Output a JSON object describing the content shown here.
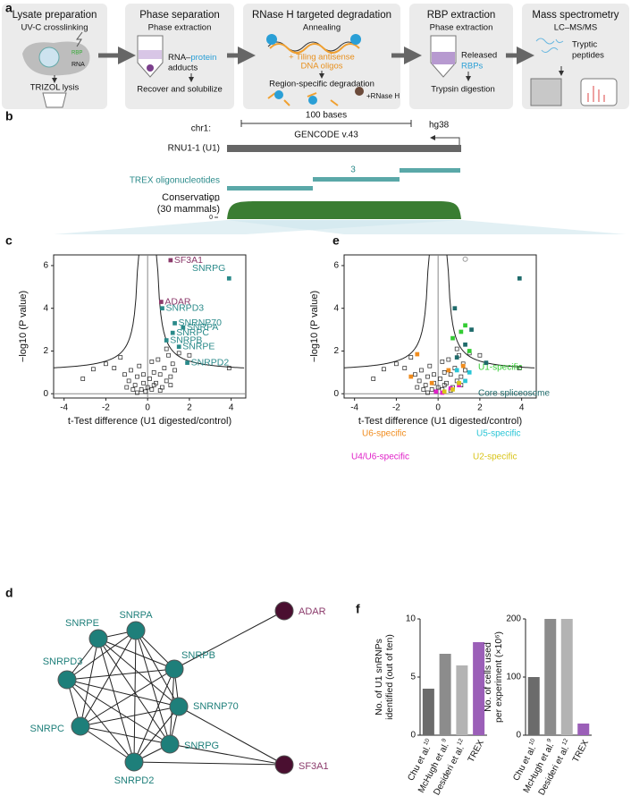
{
  "panel_labels": [
    "a",
    "b",
    "c",
    "d",
    "e",
    "f"
  ],
  "workflow": {
    "steps": [
      {
        "title": "Lysate preparation",
        "subtitle": "UV-C crosslinking",
        "notes": [
          "RBP",
          "RNA",
          "TRIZOL lysis"
        ]
      },
      {
        "title": "Phase separation",
        "subtitle": "Phase extraction",
        "notes": [
          "RNA–",
          "protein",
          "adducts",
          "Recover and solubilize"
        ]
      },
      {
        "title": "RNase H targeted degradation",
        "subtitle": "Annealing",
        "notes": [
          "+ Tiling antisense",
          "DNA oligos",
          "Region-specific degradation",
          "+RNase H"
        ]
      },
      {
        "title": "RBP extraction",
        "subtitle": "Phase extraction",
        "notes": [
          "Released",
          "RBPs",
          "Trypsin digestion"
        ]
      },
      {
        "title": "Mass spectrometry",
        "subtitle": "LC–MS/MS",
        "notes": [
          "Tryptic",
          "peptides"
        ]
      }
    ]
  },
  "track": {
    "chrom": "chr1:",
    "scale": "100 bases",
    "assembly": "hg38",
    "gencode": "GENCODE v.43",
    "gene": "RNU1-1 (U1)",
    "oligo_track": "TREX oligonucleotides",
    "oligo_count": 3,
    "conservation": [
      "Conservation",
      "(30 mammals)"
    ],
    "conservation_ticks": [
      1,
      0
    ]
  },
  "chart_data": [
    {
      "type": "scatter",
      "xlabel": "t-Test difference (U1 digested/control)",
      "ylabel": "−log10 (P value)",
      "xlim": [
        -4.5,
        4.7
      ],
      "ylim": [
        -0.2,
        6.5
      ],
      "xticks": [
        -4,
        -2,
        0,
        2,
        4
      ],
      "yticks": [
        0,
        2,
        4,
        6
      ],
      "series": [
        {
          "color": "#222222",
          "marker": "open-square",
          "x": [
            -3.1,
            -2.6,
            -2.0,
            -1.6,
            -1.3,
            -1.1,
            -0.9,
            -0.8,
            -0.6,
            -0.5,
            -0.4,
            -0.3,
            -0.2,
            -0.1,
            0.0,
            0.1,
            0.2,
            0.3,
            0.4,
            0.5,
            0.6,
            0.7,
            0.8,
            0.9,
            1.0,
            1.1,
            1.2,
            1.3,
            1.5,
            2.0,
            3.9,
            -0.7,
            -0.2,
            0.3,
            0.6,
            0.9,
            -0.5,
            0.2,
            1.1,
            -1.0
          ],
          "y": [
            0.7,
            1.15,
            1.4,
            1.2,
            1.7,
            0.9,
            0.6,
            1.1,
            0.4,
            0.8,
            1.3,
            0.2,
            0.5,
            0.1,
            0.3,
            0.7,
            0.2,
            1.0,
            0.5,
            1.6,
            0.9,
            0.3,
            1.2,
            0.6,
            1.8,
            0.4,
            1.4,
            1.1,
            1.9,
            1.8,
            1.2,
            0.2,
            0.9,
            0.4,
            0.15,
            2.1,
            0.05,
            1.5,
            0.8,
            0.3
          ]
        },
        {
          "color": "#2a8a8a",
          "marker": "square",
          "x": [
            3.9,
            0.7,
            1.3,
            1.7,
            1.2,
            0.9,
            1.5,
            1.9
          ],
          "y": [
            5.4,
            4.0,
            3.3,
            3.1,
            2.85,
            2.5,
            2.2,
            1.45
          ],
          "labels": [
            "SNRPG",
            "SNRPD3",
            "SNRNP70",
            "SNRPA",
            "SNRPC",
            "SNRPB",
            "SNRPE",
            "SNRPD2"
          ]
        },
        {
          "color": "#8b3a6b",
          "marker": "square",
          "x": [
            1.1,
            0.65
          ],
          "y": [
            6.25,
            4.3
          ],
          "labels": [
            "SF3A1",
            "ADAR"
          ]
        }
      ]
    },
    {
      "type": "scatter",
      "xlabel": "t-Test difference (U1 digested/control)",
      "ylabel": "−log10 (P value)",
      "xlim": [
        -4.5,
        4.7
      ],
      "ylim": [
        -0.2,
        6.5
      ],
      "xticks": [
        -4,
        -2,
        0,
        2,
        4
      ],
      "yticks": [
        0,
        2,
        4,
        6
      ],
      "series": [
        {
          "color": "#222222",
          "marker": "open-square",
          "x": [
            -3.1,
            -2.6,
            -2.0,
            -1.6,
            -1.3,
            -1.1,
            -0.9,
            -0.8,
            -0.6,
            -0.5,
            -0.4,
            -0.3,
            -0.2,
            -0.1,
            0.0,
            0.1,
            0.2,
            0.3,
            0.4,
            0.5,
            0.6,
            0.7,
            0.8,
            0.9,
            1.0,
            1.1,
            1.2,
            1.3,
            1.5,
            2.0,
            3.9,
            -0.7,
            -0.2,
            0.3,
            0.6,
            0.9,
            -0.5,
            0.2,
            1.1,
            -1.0
          ],
          "y": [
            0.7,
            1.15,
            1.4,
            1.2,
            1.7,
            0.9,
            0.6,
            1.1,
            0.4,
            0.8,
            1.3,
            0.2,
            0.5,
            0.1,
            0.3,
            0.7,
            0.2,
            1.0,
            0.5,
            1.6,
            0.9,
            0.3,
            1.2,
            0.6,
            1.8,
            0.4,
            1.4,
            1.1,
            1.9,
            1.8,
            1.2,
            0.2,
            0.9,
            0.4,
            0.15,
            2.1,
            0.05,
            1.5,
            0.8,
            0.3
          ]
        },
        {
          "name": "U1-specific",
          "color": "#33cc33",
          "marker": "square",
          "x": [
            1.3,
            1.1,
            0.7,
            1.5
          ],
          "y": [
            3.2,
            2.9,
            2.6,
            2.0
          ]
        },
        {
          "name": "Core spliceosome",
          "color": "#1f6b6b",
          "marker": "square",
          "x": [
            0.8,
            1.6,
            2.3,
            3.9,
            1.3,
            0.9
          ],
          "y": [
            4.0,
            3.0,
            1.45,
            5.4,
            2.3,
            1.7
          ]
        },
        {
          "name": "U5-specific",
          "color": "#29c5d6",
          "marker": "square",
          "x": [
            0.9,
            1.5,
            1.3
          ],
          "y": [
            1.1,
            1.0,
            0.6
          ]
        },
        {
          "name": "U6-specific",
          "color": "#f08c1e",
          "marker": "square",
          "x": [
            -1.0,
            -1.3,
            -0.3,
            0.5,
            1.2
          ],
          "y": [
            1.85,
            0.8,
            0.5,
            1.1,
            1.3
          ]
        },
        {
          "name": "U4/U6-specific",
          "color": "#e020c8",
          "marker": "square",
          "x": [
            0.2,
            1.0,
            0.6,
            -0.1
          ],
          "y": [
            0.05,
            0.4,
            0.25,
            0.1
          ]
        },
        {
          "name": "U2-specific",
          "color": "#d9c41a",
          "marker": "square",
          "x": [
            0.3,
            0.7,
            1.0
          ],
          "y": [
            0.1,
            0.2,
            0.5
          ]
        },
        {
          "color": "#999999",
          "marker": "open-circle",
          "x": [
            1.3
          ],
          "y": [
            6.3
          ]
        }
      ]
    },
    {
      "type": "bar",
      "ylabel": [
        "No. of U1 snRNPs",
        "identified (out of ten)"
      ],
      "categories": [
        {
          "label": "Chu et al.",
          "ref": "10"
        },
        {
          "label": "McHugh et al.",
          "ref": "9"
        },
        {
          "label": "Desideri et al.",
          "ref": "12"
        },
        {
          "label": "TREX"
        }
      ],
      "values": [
        4,
        7,
        6,
        8
      ],
      "colors": [
        "#6b6b6b",
        "#8c8c8c",
        "#b3b3b3",
        "#9b5fb8"
      ],
      "ylim": [
        0,
        10
      ],
      "yticks": [
        0,
        5,
        10
      ]
    },
    {
      "type": "bar",
      "ylabel": [
        "No. of cells used",
        "per experiment (×10⁶)"
      ],
      "categories": [
        {
          "label": "Chu et al.",
          "ref": "10"
        },
        {
          "label": "McHugh et al.",
          "ref": "9"
        },
        {
          "label": "Desideri et al.",
          "ref": "12"
        },
        {
          "label": "TREX"
        }
      ],
      "values": [
        100,
        200,
        200,
        20
      ],
      "colors": [
        "#6b6b6b",
        "#8c8c8c",
        "#b3b3b3",
        "#9b5fb8"
      ],
      "ylim": [
        0,
        200
      ],
      "yticks": [
        0,
        100,
        200
      ]
    }
  ],
  "network": {
    "nodes": [
      {
        "label": "SNRPE",
        "color": "#1e7f7a"
      },
      {
        "label": "SNRPA",
        "color": "#1e7f7a"
      },
      {
        "label": "SNRPD3",
        "color": "#1e7f7a"
      },
      {
        "label": "SNRPB",
        "color": "#1e7f7a"
      },
      {
        "label": "SNRNP70",
        "color": "#1e7f7a"
      },
      {
        "label": "SNRPC",
        "color": "#1e7f7a"
      },
      {
        "label": "SNRPG",
        "color": "#1e7f7a"
      },
      {
        "label": "SNRPD2",
        "color": "#1e7f7a"
      },
      {
        "label": "ADAR",
        "color": "#4a0f30"
      },
      {
        "label": "SF3A1",
        "color": "#4a0f30"
      }
    ]
  }
}
